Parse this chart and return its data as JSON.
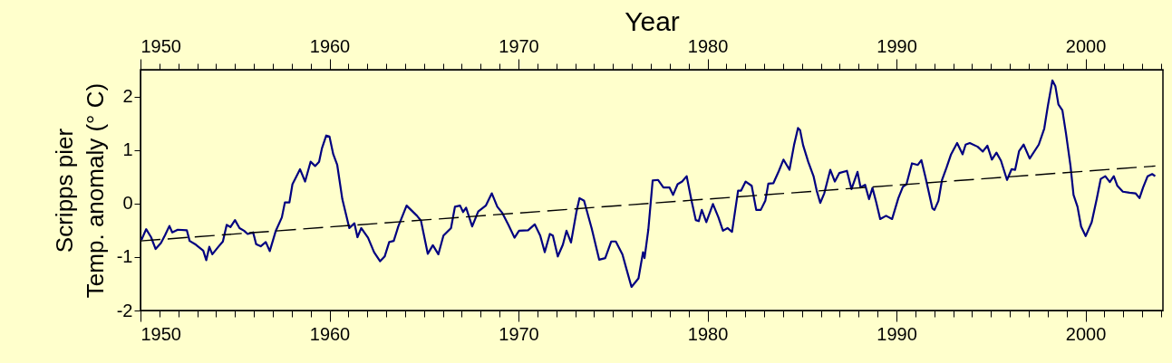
{
  "chart_data": {
    "type": "line",
    "x2label": "Year",
    "ylabel": "Scripps pier\nTemp. anomaly (° C)",
    "xlim": [
      1950,
      2004.1
    ],
    "xticks": [
      1950,
      {
        "value": 1951,
        "label": null
      },
      {
        "value": 1952,
        "label": null
      },
      {
        "value": 1953,
        "label": null
      },
      {
        "value": 1954,
        "label": null
      },
      {
        "value": 1955,
        "label": null
      },
      {
        "value": 1956,
        "label": null
      },
      {
        "value": 1957,
        "label": null
      },
      {
        "value": 1958,
        "label": null
      },
      {
        "value": 1959,
        "label": null
      },
      1960,
      {
        "value": 1961,
        "label": null
      },
      {
        "value": 1962,
        "label": null
      },
      {
        "value": 1963,
        "label": null
      },
      {
        "value": 1964,
        "label": null
      },
      {
        "value": 1965,
        "label": null
      },
      {
        "value": 1966,
        "label": null
      },
      {
        "value": 1967,
        "label": null
      },
      {
        "value": 1968,
        "label": null
      },
      {
        "value": 1969,
        "label": null
      },
      1970,
      {
        "value": 1971,
        "label": null
      },
      {
        "value": 1972,
        "label": null
      },
      {
        "value": 1973,
        "label": null
      },
      {
        "value": 1974,
        "label": null
      },
      {
        "value": 1975,
        "label": null
      },
      {
        "value": 1976,
        "label": null
      },
      {
        "value": 1977,
        "label": null
      },
      {
        "value": 1978,
        "label": null
      },
      {
        "value": 1979,
        "label": null
      },
      1980,
      {
        "value": 1981,
        "label": null
      },
      {
        "value": 1982,
        "label": null
      },
      {
        "value": 1983,
        "label": null
      },
      {
        "value": 1984,
        "label": null
      },
      {
        "value": 1985,
        "label": null
      },
      {
        "value": 1986,
        "label": null
      },
      {
        "value": 1987,
        "label": null
      },
      {
        "value": 1988,
        "label": null
      },
      {
        "value": 1989,
        "label": null
      },
      1990,
      {
        "value": 1991,
        "label": null
      },
      {
        "value": 1992,
        "label": null
      },
      {
        "value": 1993,
        "label": null
      },
      {
        "value": 1994,
        "label": null
      },
      {
        "value": 1995,
        "label": null
      },
      {
        "value": 1996,
        "label": null
      },
      {
        "value": 1997,
        "label": null
      },
      {
        "value": 1998,
        "label": null
      },
      {
        "value": 1999,
        "label": null
      },
      2000,
      {
        "value": 2001,
        "label": null
      },
      {
        "value": 2002,
        "label": null
      },
      {
        "value": 2003,
        "label": null
      },
      {
        "value": 2004,
        "label": null
      }
    ],
    "x2lim": [
      1950,
      2004.1
    ],
    "x2ticks": [
      1950,
      {
        "value": 1951,
        "label": null
      },
      {
        "value": 1952,
        "label": null
      },
      {
        "value": 1953,
        "label": null
      },
      {
        "value": 1954,
        "label": null
      },
      {
        "value": 1955,
        "label": null
      },
      {
        "value": 1956,
        "label": null
      },
      {
        "value": 1957,
        "label": null
      },
      {
        "value": 1958,
        "label": null
      },
      {
        "value": 1959,
        "label": null
      },
      1960,
      {
        "value": 1961,
        "label": null
      },
      {
        "value": 1962,
        "label": null
      },
      {
        "value": 1963,
        "label": null
      },
      {
        "value": 1964,
        "label": null
      },
      {
        "value": 1965,
        "label": null
      },
      {
        "value": 1966,
        "label": null
      },
      {
        "value": 1967,
        "label": null
      },
      {
        "value": 1968,
        "label": null
      },
      {
        "value": 1969,
        "label": null
      },
      1970,
      {
        "value": 1971,
        "label": null
      },
      {
        "value": 1972,
        "label": null
      },
      {
        "value": 1973,
        "label": null
      },
      {
        "value": 1974,
        "label": null
      },
      {
        "value": 1975,
        "label": null
      },
      {
        "value": 1976,
        "label": null
      },
      {
        "value": 1977,
        "label": null
      },
      {
        "value": 1978,
        "label": null
      },
      {
        "value": 1979,
        "label": null
      },
      1980,
      {
        "value": 1981,
        "label": null
      },
      {
        "value": 1982,
        "label": null
      },
      {
        "value": 1983,
        "label": null
      },
      {
        "value": 1984,
        "label": null
      },
      {
        "value": 1985,
        "label": null
      },
      {
        "value": 1986,
        "label": null
      },
      {
        "value": 1987,
        "label": null
      },
      {
        "value": 1988,
        "label": null
      },
      {
        "value": 1989,
        "label": null
      },
      1990,
      {
        "value": 1991,
        "label": null
      },
      {
        "value": 1992,
        "label": null
      },
      {
        "value": 1993,
        "label": null
      },
      {
        "value": 1994,
        "label": null
      },
      {
        "value": 1995,
        "label": null
      },
      {
        "value": 1996,
        "label": null
      },
      {
        "value": 1997,
        "label": null
      },
      {
        "value": 1998,
        "label": null
      },
      {
        "value": 1999,
        "label": null
      },
      2000,
      {
        "value": 2001,
        "label": null
      },
      {
        "value": 2002,
        "label": null
      },
      {
        "value": 2003,
        "label": null
      },
      {
        "value": 2004,
        "label": null
      }
    ],
    "ylim": [
      -2,
      2.5
    ],
    "yticks": [
      -2,
      -1,
      0,
      1,
      2
    ],
    "grid": false,
    "marker": "none",
    "line_style": "solid",
    "series": [
      {
        "color": "#000080",
        "x": [
          1950.05,
          1950.3,
          1950.56,
          1950.8,
          1951.08,
          1951.3,
          1951.53,
          1951.68,
          1951.97,
          1952.45,
          1952.6,
          1952.93,
          1953.32,
          1953.48,
          1953.64,
          1953.8,
          1954.12,
          1954.36,
          1954.56,
          1954.76,
          1955.0,
          1955.24,
          1955.48,
          1955.67,
          1955.96,
          1956.12,
          1956.36,
          1956.63,
          1956.84,
          1957.16,
          1957.48,
          1957.64,
          1957.88,
          1958.04,
          1958.2,
          1958.44,
          1958.71,
          1959.0,
          1959.24,
          1959.45,
          1959.6,
          1959.83,
          1960.0,
          1960.2,
          1960.41,
          1960.68,
          1961.05,
          1961.32,
          1961.48,
          1961.68,
          1962.04,
          1962.36,
          1962.68,
          1962.92,
          1963.16,
          1963.4,
          1963.64,
          1964.08,
          1964.63,
          1964.84,
          1965.2,
          1965.47,
          1965.76,
          1966.03,
          1966.43,
          1966.64,
          1966.91,
          1967.07,
          1967.23,
          1967.55,
          1967.87,
          1968.27,
          1968.59,
          1968.88,
          1969.15,
          1969.47,
          1969.79,
          1970.03,
          1970.51,
          1970.86,
          1971.15,
          1971.39,
          1971.66,
          1971.82,
          1972.08,
          1972.35,
          1972.54,
          1972.78,
          1973.07,
          1973.23,
          1973.47,
          1973.87,
          1974.27,
          1974.59,
          1974.91,
          1975.15,
          1975.5,
          1975.71,
          1975.98,
          1976.35,
          1976.59,
          1976.67,
          1976.87,
          1977.1,
          1977.39,
          1977.67,
          1977.99,
          1978.18,
          1978.42,
          1978.66,
          1978.9,
          1979.14,
          1979.38,
          1979.54,
          1979.7,
          1979.94,
          1980.29,
          1980.58,
          1980.82,
          1981.06,
          1981.3,
          1981.62,
          1981.78,
          1982.02,
          1982.34,
          1982.58,
          1982.82,
          1983.06,
          1983.22,
          1983.49,
          1983.78,
          1984.02,
          1984.34,
          1984.58,
          1984.79,
          1984.9,
          1985.06,
          1985.33,
          1985.62,
          1985.78,
          1985.97,
          1986.18,
          1986.5,
          1986.74,
          1986.98,
          1987.38,
          1987.62,
          1987.94,
          1988.1,
          1988.34,
          1988.55,
          1988.73,
          1988.93,
          1989.14,
          1989.45,
          1989.77,
          1990.1,
          1990.34,
          1990.53,
          1990.82,
          1991.13,
          1991.32,
          1991.53,
          1991.9,
          1992.01,
          1992.22,
          1992.41,
          1992.65,
          1992.89,
          1993.21,
          1993.5,
          1993.66,
          1993.88,
          1994.3,
          1994.57,
          1994.81,
          1995.05,
          1995.29,
          1995.53,
          1995.85,
          1996.09,
          1996.28,
          1996.49,
          1996.73,
          1997.05,
          1997.53,
          1997.82,
          1998.01,
          1998.25,
          1998.41,
          1998.57,
          1998.78,
          1998.97,
          1999.21,
          1999.37,
          1999.58,
          1999.77,
          2000.01,
          2000.33,
          2000.6,
          2000.81,
          2001.05,
          2001.29,
          2001.5,
          2001.69,
          2001.98,
          2002.33,
          2002.65,
          2002.86,
          2003.05,
          2003.29,
          2003.53,
          2003.69
        ],
        "values": [
          -0.68,
          -0.48,
          -0.63,
          -0.85,
          -0.74,
          -0.59,
          -0.42,
          -0.54,
          -0.49,
          -0.5,
          -0.7,
          -0.77,
          -0.88,
          -1.06,
          -0.81,
          -0.95,
          -0.81,
          -0.71,
          -0.4,
          -0.44,
          -0.31,
          -0.46,
          -0.51,
          -0.57,
          -0.54,
          -0.76,
          -0.8,
          -0.72,
          -0.89,
          -0.51,
          -0.26,
          0.02,
          0.02,
          0.36,
          0.47,
          0.64,
          0.41,
          0.78,
          0.7,
          0.78,
          1.03,
          1.27,
          1.25,
          0.92,
          0.72,
          0.08,
          -0.46,
          -0.37,
          -0.63,
          -0.46,
          -0.64,
          -0.91,
          -1.08,
          -0.99,
          -0.72,
          -0.7,
          -0.43,
          -0.04,
          -0.23,
          -0.32,
          -0.94,
          -0.78,
          -0.95,
          -0.6,
          -0.46,
          -0.06,
          -0.04,
          -0.16,
          -0.08,
          -0.43,
          -0.15,
          -0.04,
          0.19,
          -0.06,
          -0.18,
          -0.4,
          -0.64,
          -0.51,
          -0.5,
          -0.39,
          -0.6,
          -0.91,
          -0.57,
          -0.6,
          -0.99,
          -0.77,
          -0.51,
          -0.73,
          -0.15,
          0.1,
          0.05,
          -0.46,
          -1.05,
          -1.02,
          -0.71,
          -0.71,
          -0.95,
          -1.22,
          -1.56,
          -1.4,
          -0.91,
          -1.02,
          -0.49,
          0.43,
          0.44,
          0.3,
          0.3,
          0.16,
          0.36,
          0.41,
          0.51,
          0.08,
          -0.31,
          -0.33,
          -0.12,
          -0.35,
          -0.01,
          -0.26,
          -0.51,
          -0.46,
          -0.53,
          0.24,
          0.24,
          0.41,
          0.33,
          -0.12,
          -0.12,
          0.05,
          0.37,
          0.38,
          0.61,
          0.82,
          0.63,
          1.09,
          1.41,
          1.37,
          1.09,
          0.78,
          0.5,
          0.24,
          0.01,
          0.19,
          0.63,
          0.41,
          0.57,
          0.61,
          0.27,
          0.59,
          0.3,
          0.35,
          0.08,
          0.29,
          0.02,
          -0.29,
          -0.23,
          -0.29,
          0.1,
          0.31,
          0.36,
          0.75,
          0.72,
          0.81,
          0.5,
          -0.09,
          -0.12,
          0.05,
          0.44,
          0.67,
          0.92,
          1.13,
          0.92,
          1.1,
          1.13,
          1.06,
          0.97,
          1.08,
          0.82,
          0.95,
          0.8,
          0.44,
          0.64,
          0.63,
          0.98,
          1.1,
          0.84,
          1.1,
          1.4,
          1.82,
          2.3,
          2.19,
          1.85,
          1.74,
          1.31,
          0.7,
          0.16,
          -0.06,
          -0.43,
          -0.61,
          -0.35,
          0.09,
          0.46,
          0.51,
          0.4,
          0.51,
          0.33,
          0.22,
          0.2,
          0.19,
          0.1,
          0.3,
          0.51,
          0.55,
          0.51
        ]
      },
      {
        "type": "line",
        "color": "#000000",
        "line_style": "dashed",
        "x": [
          1950,
          2003.7
        ],
        "values": [
          -0.7,
          0.7
        ]
      }
    ]
  }
}
